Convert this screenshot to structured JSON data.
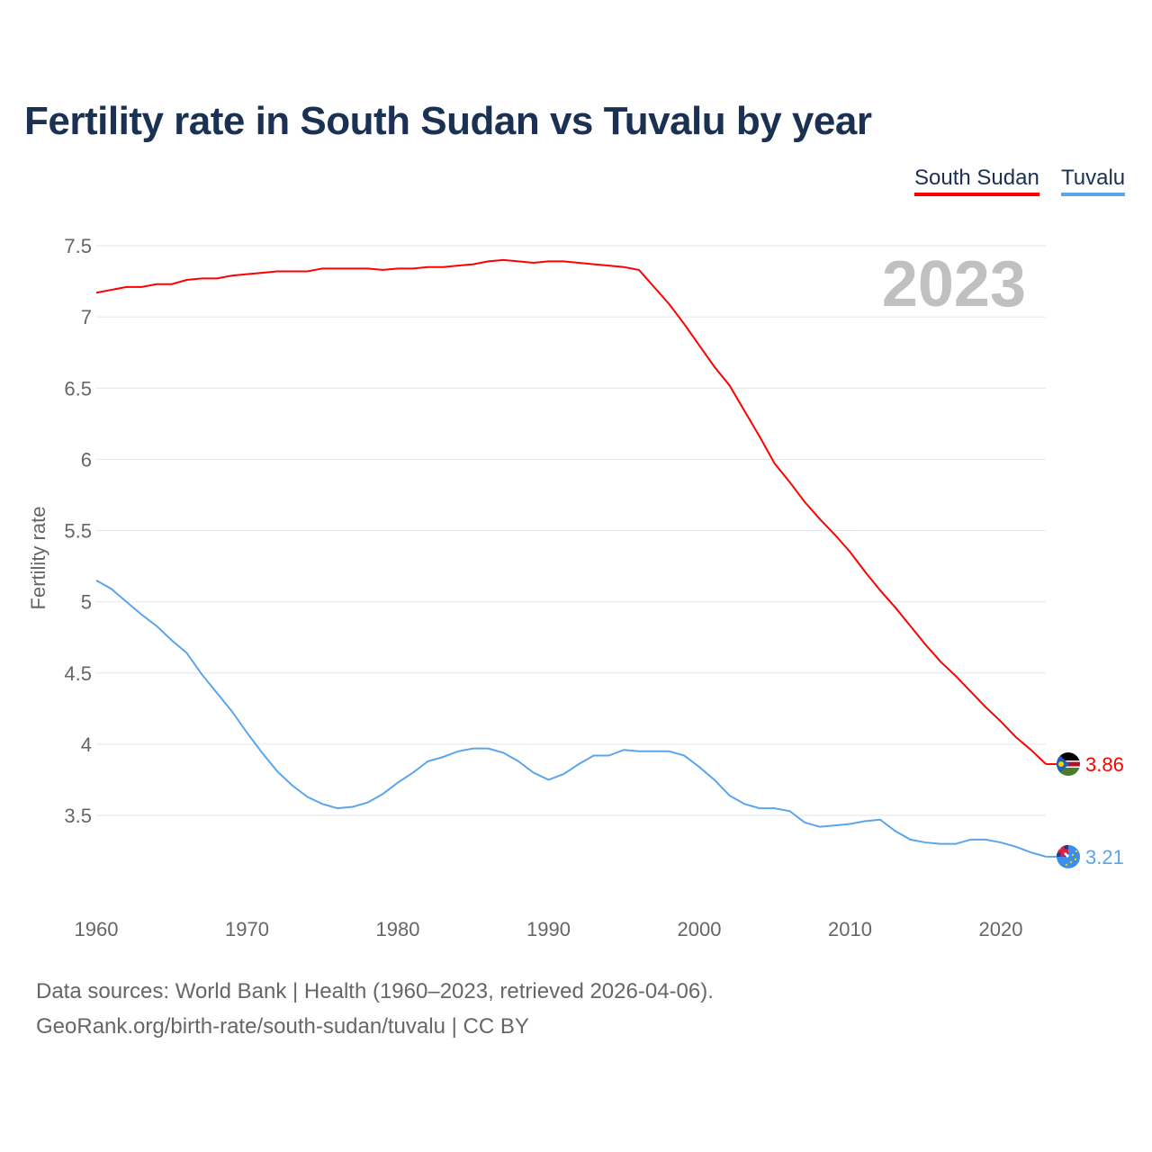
{
  "title": "Fertility rate in South Sudan vs Tuvalu by year",
  "footer": {
    "line1": "Data sources: World Bank | Health (1960–2023, retrieved 2026-04-06).",
    "line2": "GeoRank.org/birth-rate/south-sudan/tuvalu | CC BY"
  },
  "chart_data": {
    "type": "line",
    "title": "Fertility rate in South Sudan vs Tuvalu by year",
    "xlabel": "",
    "ylabel": "Fertility rate",
    "year_label": "2023",
    "xlim": [
      1960,
      2023
    ],
    "ylim": [
      3.0,
      7.6
    ],
    "xticks": [
      1960,
      1970,
      1980,
      1990,
      2000,
      2010,
      2020
    ],
    "yticks": [
      3.5,
      4,
      4.5,
      5,
      5.5,
      6,
      6.5,
      7,
      7.5
    ],
    "ytick_labels": [
      "3.5",
      "4",
      "4.5",
      "5",
      "5.5",
      "6",
      "6.5",
      "7",
      "7.5"
    ],
    "grid": true,
    "legend_position": "top-right",
    "x": [
      1960,
      1961,
      1962,
      1963,
      1964,
      1965,
      1966,
      1967,
      1968,
      1969,
      1970,
      1971,
      1972,
      1973,
      1974,
      1975,
      1976,
      1977,
      1978,
      1979,
      1980,
      1981,
      1982,
      1983,
      1984,
      1985,
      1986,
      1987,
      1988,
      1989,
      1990,
      1991,
      1992,
      1993,
      1994,
      1995,
      1996,
      1997,
      1998,
      1999,
      2000,
      2001,
      2002,
      2003,
      2004,
      2005,
      2006,
      2007,
      2008,
      2009,
      2010,
      2011,
      2012,
      2013,
      2014,
      2015,
      2016,
      2017,
      2018,
      2019,
      2020,
      2021,
      2022,
      2023
    ],
    "series": [
      {
        "name": "South Sudan",
        "color": "#ff0000",
        "end_label": "3.86",
        "values": [
          7.17,
          7.19,
          7.21,
          7.21,
          7.23,
          7.23,
          7.26,
          7.27,
          7.27,
          7.29,
          7.3,
          7.31,
          7.32,
          7.32,
          7.32,
          7.34,
          7.34,
          7.34,
          7.34,
          7.33,
          7.34,
          7.34,
          7.35,
          7.35,
          7.36,
          7.37,
          7.39,
          7.4,
          7.39,
          7.38,
          7.39,
          7.39,
          7.38,
          7.37,
          7.36,
          7.35,
          7.33,
          7.21,
          7.09,
          6.95,
          6.8,
          6.65,
          6.52,
          6.34,
          6.16,
          5.97,
          5.84,
          5.7,
          5.58,
          5.47,
          5.35,
          5.21,
          5.08,
          4.96,
          4.83,
          4.7,
          4.58,
          4.48,
          4.37,
          4.26,
          4.16,
          4.05,
          3.96,
          3.86
        ]
      },
      {
        "name": "Tuvalu",
        "color": "#5aa5ec",
        "end_label": "3.21",
        "values": [
          5.15,
          5.09,
          5.0,
          4.91,
          4.83,
          4.73,
          4.64,
          4.49,
          4.36,
          4.23,
          4.08,
          3.94,
          3.81,
          3.71,
          3.63,
          3.58,
          3.55,
          3.56,
          3.59,
          3.65,
          3.73,
          3.8,
          3.88,
          3.91,
          3.95,
          3.97,
          3.97,
          3.94,
          3.88,
          3.8,
          3.75,
          3.79,
          3.86,
          3.92,
          3.92,
          3.96,
          3.95,
          3.95,
          3.95,
          3.92,
          3.84,
          3.75,
          3.64,
          3.58,
          3.55,
          3.55,
          3.53,
          3.45,
          3.42,
          3.43,
          3.44,
          3.46,
          3.47,
          3.39,
          3.33,
          3.31,
          3.3,
          3.3,
          3.33,
          3.33,
          3.31,
          3.28,
          3.24,
          3.21
        ]
      }
    ]
  }
}
